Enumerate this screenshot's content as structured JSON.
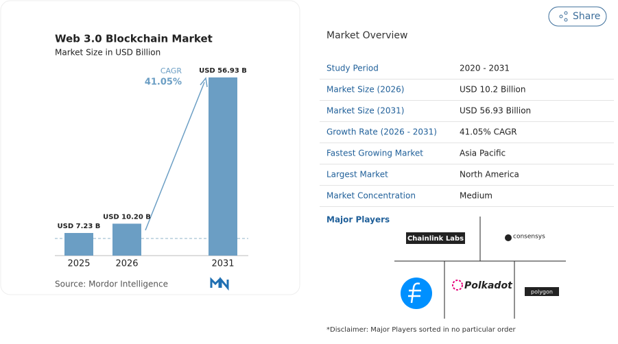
{
  "share": "Share",
  "chart_data": {
    "type": "bar",
    "title": "Web 3.0 Blockchain Market",
    "subtitle": "Market Size in USD Billion",
    "categories": [
      "2025",
      "2026",
      "2031"
    ],
    "values": [
      7.23,
      10.2,
      56.93
    ],
    "value_labels": [
      "USD 7.23 B",
      "USD 10.20 B",
      "USD 56.93 B"
    ],
    "color": "#6b9ec4",
    "annotations": [
      "CAGR",
      "41.05%"
    ],
    "source": "Source: Mordor Intelligence"
  },
  "overview": {
    "title": "Market Overview",
    "rows": [
      [
        "Study Period",
        "2020 - 2031"
      ],
      [
        "Market Size (2026)",
        "USD 10.2 Billion"
      ],
      [
        "Market Size (2031)",
        "USD 56.93 Billion"
      ],
      [
        "Growth Rate (2026 - 2031)",
        "41.05% CAGR"
      ],
      [
        "Fastest Growing Market",
        "Asia Pacific"
      ],
      [
        "Largest Market",
        "North America"
      ],
      [
        "Market Concentration",
        "Medium"
      ]
    ],
    "major_players_label": "Major Players",
    "players": [
      "Chainlink Labs",
      "consensys",
      "Polkadot",
      "polygon"
    ],
    "disclaimer": "*Disclaimer: Major Players sorted in no particular order"
  }
}
